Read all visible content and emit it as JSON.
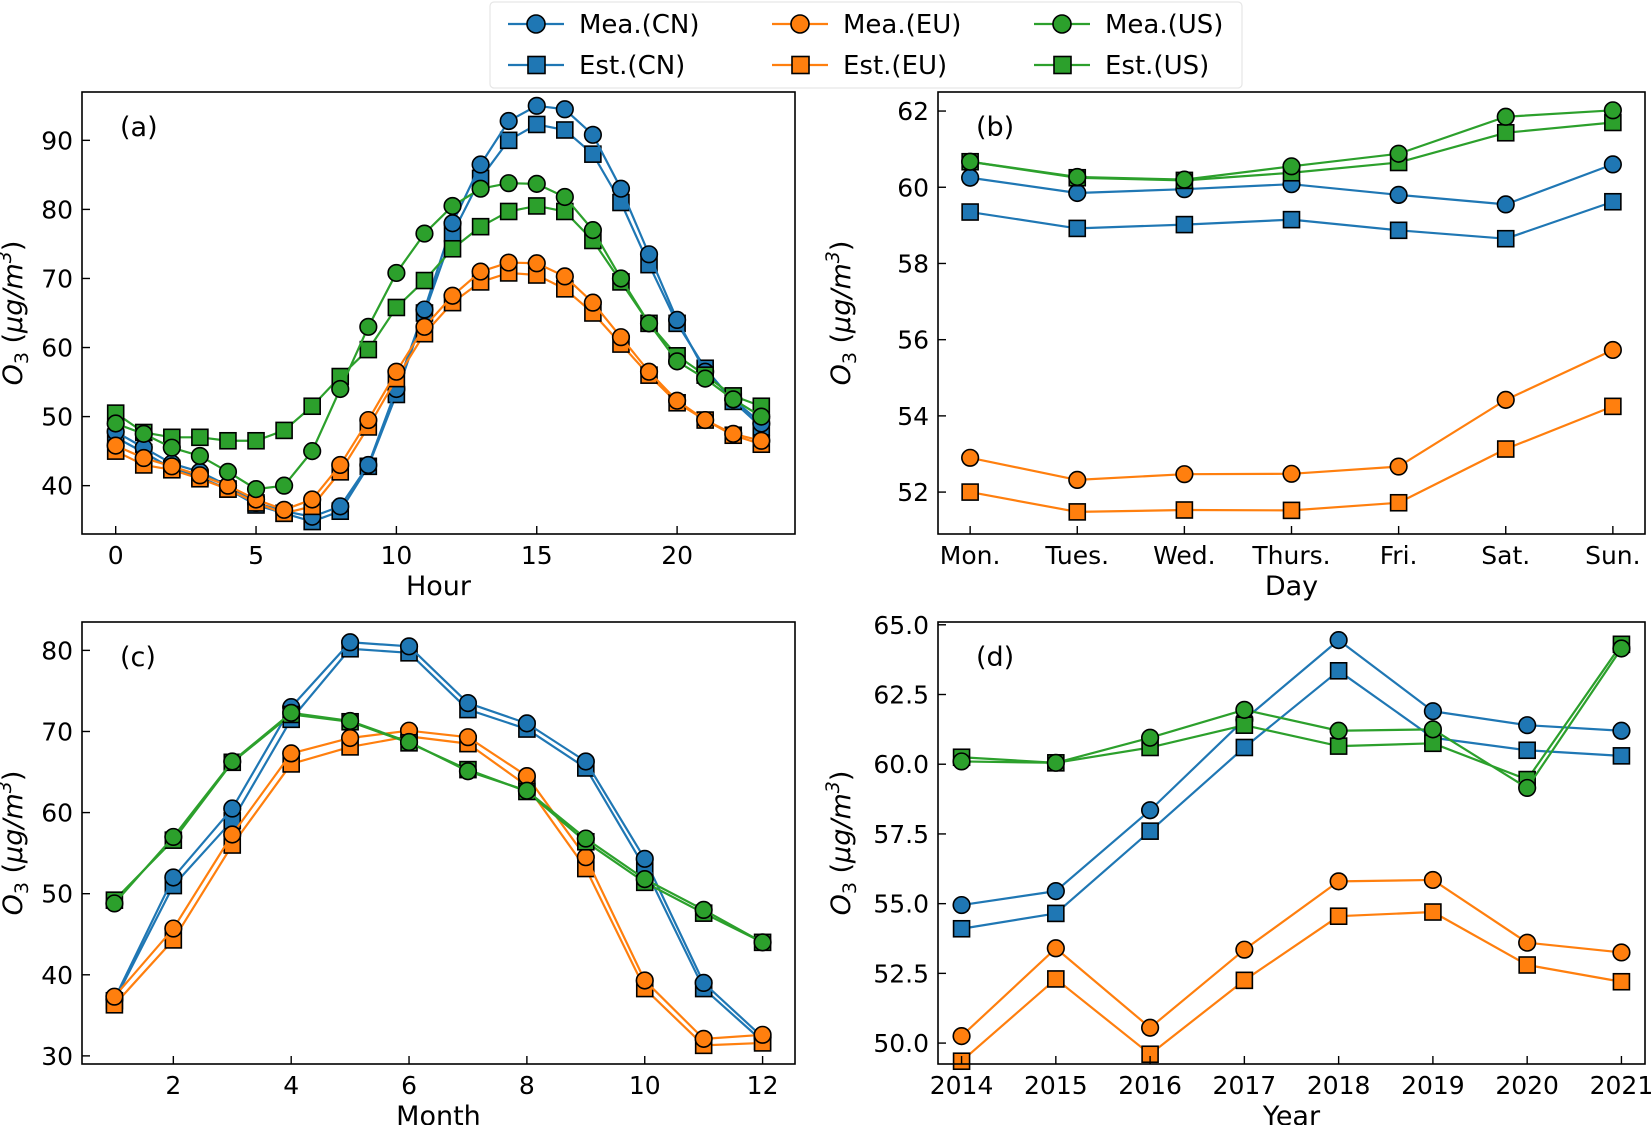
{
  "colors": {
    "CN": "#1f77b4",
    "EU": "#ff7f0e",
    "US": "#2ca02c"
  },
  "legend": {
    "entries": [
      {
        "label": "Mea.(CN)",
        "color": "#1f77b4",
        "marker": "circle"
      },
      {
        "label": "Est.(CN)",
        "color": "#1f77b4",
        "marker": "square"
      },
      {
        "label": "Mea.(EU)",
        "color": "#ff7f0e",
        "marker": "circle"
      },
      {
        "label": "Est.(EU)",
        "color": "#ff7f0e",
        "marker": "square"
      },
      {
        "label": "Mea.(US)",
        "color": "#2ca02c",
        "marker": "circle"
      },
      {
        "label": "Est.(US)",
        "color": "#2ca02c",
        "marker": "square"
      }
    ]
  },
  "chart_data": [
    {
      "panel": "(a)",
      "type": "line",
      "xlabel": "Hour",
      "ylabel": "O3 (μg/m3)",
      "x": [
        0,
        1,
        2,
        3,
        4,
        5,
        6,
        7,
        8,
        9,
        10,
        11,
        12,
        13,
        14,
        15,
        16,
        17,
        18,
        19,
        20,
        21,
        22,
        23
      ],
      "xlim": [
        -1.2,
        24.2
      ],
      "ylim": [
        33,
        97
      ],
      "xticks": [
        0,
        5,
        10,
        15,
        20
      ],
      "xtick_labels": [
        "0",
        "5",
        "10",
        "15",
        "20"
      ],
      "yticks": [
        40,
        50,
        60,
        70,
        80,
        90
      ],
      "ytick_labels": [
        "40",
        "50",
        "60",
        "70",
        "80",
        "90"
      ],
      "series": [
        {
          "name": "Mea.(CN)",
          "values": [
            47.8,
            45.5,
            43.2,
            42,
            40,
            37.5,
            36.3,
            35.5,
            37,
            43,
            54,
            65.5,
            78,
            86.5,
            92.8,
            95,
            94.5,
            90.8,
            83,
            73.5,
            64,
            56.5,
            52.5,
            49
          ]
        },
        {
          "name": "Est.(CN)",
          "values": [
            47,
            44.8,
            42.5,
            41.2,
            39.5,
            37.2,
            36,
            34.8,
            36.3,
            42.8,
            53.2,
            65,
            76.5,
            84.5,
            90,
            92.3,
            91.5,
            88,
            81,
            72,
            63.5,
            57,
            52.2,
            48.5
          ]
        },
        {
          "name": "Mea.(EU)",
          "values": [
            45.8,
            44,
            42.8,
            41.5,
            40,
            38,
            36.5,
            38,
            43,
            49.5,
            56.5,
            63,
            67.5,
            71,
            72.3,
            72.2,
            70.3,
            66.5,
            61.5,
            56.5,
            52.3,
            49.5,
            47.5,
            46.5
          ]
        },
        {
          "name": "Est.(EU)",
          "values": [
            45,
            43,
            42.3,
            41,
            39.5,
            37.5,
            36,
            37,
            42,
            48.5,
            55.5,
            62,
            66.5,
            69.5,
            70.8,
            70.5,
            68.5,
            65,
            60.5,
            56,
            52,
            49.5,
            47.3,
            46
          ]
        },
        {
          "name": "Mea.(US)",
          "values": [
            49,
            47.5,
            45.5,
            44.3,
            42,
            39.5,
            40,
            45,
            54,
            63,
            70.8,
            76.5,
            80.5,
            83,
            83.8,
            83.7,
            81.8,
            77,
            70,
            63.5,
            58,
            55.5,
            52.5,
            50
          ]
        },
        {
          "name": "Est.(US)",
          "values": [
            50.5,
            47.7,
            47,
            47,
            46.5,
            46.5,
            48,
            51.5,
            55.8,
            59.7,
            65.8,
            69.7,
            74.3,
            77.5,
            79.7,
            80.5,
            79.7,
            75.5,
            69.5,
            63.5,
            58.8,
            56,
            53,
            51.5
          ]
        }
      ]
    },
    {
      "panel": "(b)",
      "type": "line",
      "xlabel": "Day",
      "ylabel": "O3 (μg/m3)",
      "x": [
        0,
        1,
        2,
        3,
        4,
        5,
        6
      ],
      "xlim": [
        -0.3,
        6.3
      ],
      "ylim": [
        50.9,
        62.5
      ],
      "xticks": [
        0,
        1,
        2,
        3,
        4,
        5,
        6
      ],
      "xtick_labels": [
        "Mon.",
        "Tues.",
        "Wed.",
        "Thurs.",
        "Fri.",
        "Sat.",
        "Sun."
      ],
      "yticks": [
        52,
        54,
        56,
        58,
        60,
        62
      ],
      "ytick_labels": [
        "52",
        "54",
        "56",
        "58",
        "60",
        "62"
      ],
      "series": [
        {
          "name": "Mea.(CN)",
          "values": [
            60.25,
            59.85,
            59.95,
            60.08,
            59.8,
            59.55,
            60.6
          ]
        },
        {
          "name": "Est.(CN)",
          "values": [
            59.35,
            58.92,
            59.02,
            59.15,
            58.87,
            58.65,
            59.62
          ]
        },
        {
          "name": "Mea.(EU)",
          "values": [
            52.9,
            52.32,
            52.47,
            52.48,
            52.67,
            54.42,
            55.73
          ]
        },
        {
          "name": "Est.(EU)",
          "values": [
            52,
            51.48,
            51.53,
            51.52,
            51.72,
            53.13,
            54.25
          ]
        },
        {
          "name": "Mea.(US)",
          "values": [
            60.67,
            60.27,
            60.2,
            60.55,
            60.88,
            61.85,
            62.02
          ]
        },
        {
          "name": "Est.(US)",
          "values": [
            60.67,
            60.25,
            60.18,
            60.38,
            60.65,
            61.43,
            61.7
          ]
        }
      ]
    },
    {
      "panel": "(c)",
      "type": "line",
      "xlabel": "Month",
      "ylabel": "O3 (μg/m3)",
      "x": [
        1,
        2,
        3,
        4,
        5,
        6,
        7,
        8,
        9,
        10,
        11,
        12
      ],
      "xlim": [
        0.45,
        12.55
      ],
      "ylim": [
        29,
        83.5
      ],
      "xticks": [
        2,
        4,
        6,
        8,
        10,
        12
      ],
      "xtick_labels": [
        "2",
        "4",
        "6",
        "8",
        "10",
        "12"
      ],
      "yticks": [
        30,
        40,
        50,
        60,
        70,
        80
      ],
      "ytick_labels": [
        "30",
        "40",
        "50",
        "60",
        "70",
        "80"
      ],
      "series": [
        {
          "name": "Mea.(CN)",
          "values": [
            37,
            52,
            60.5,
            73,
            81,
            80.5,
            73.5,
            71,
            66.3,
            54.3,
            39,
            32.3
          ]
        },
        {
          "name": "Est.(CN)",
          "values": [
            36.8,
            51,
            59,
            71.5,
            80.2,
            79.7,
            72.7,
            70.3,
            65.5,
            53.2,
            38.3,
            31.8
          ]
        },
        {
          "name": "Mea.(EU)",
          "values": [
            37.3,
            45.7,
            57.3,
            67.3,
            69.2,
            70.1,
            69.3,
            64.5,
            54.5,
            39.3,
            32.1,
            32.6
          ]
        },
        {
          "name": "Est.(EU)",
          "values": [
            36.3,
            44.3,
            56,
            66,
            68.1,
            69.4,
            68.5,
            63.3,
            53.1,
            38.3,
            31.3,
            31.6
          ]
        },
        {
          "name": "Mea.(US)",
          "values": [
            48.8,
            57,
            66.3,
            72.3,
            71.3,
            68.7,
            65.1,
            62.7,
            56.8,
            51.8,
            48,
            44
          ]
        },
        {
          "name": "Est.(US)",
          "values": [
            49.2,
            56.6,
            66.2,
            72.1,
            71.2,
            68.6,
            65.3,
            62.6,
            56.4,
            51.4,
            47.6,
            44
          ]
        }
      ]
    },
    {
      "panel": "(d)",
      "type": "line",
      "xlabel": "Year",
      "ylabel": "O3 (μg/m3)",
      "x": [
        2014,
        2015,
        2016,
        2017,
        2018,
        2019,
        2020,
        2021
      ],
      "xlim": [
        2013.75,
        2021.25
      ],
      "ylim": [
        49.25,
        65.1
      ],
      "xticks": [
        2014,
        2015,
        2016,
        2017,
        2018,
        2019,
        2020,
        2021
      ],
      "xtick_labels": [
        "2014",
        "2015",
        "2016",
        "2017",
        "2018",
        "2019",
        "2020",
        "2021"
      ],
      "yticks": [
        50,
        52.5,
        55,
        57.5,
        60,
        62.5,
        65
      ],
      "ytick_labels": [
        "50.0",
        "52.5",
        "55.0",
        "57.5",
        "60.0",
        "62.5",
        "65.0"
      ],
      "series": [
        {
          "name": "Mea.(CN)",
          "values": [
            54.95,
            55.45,
            58.35,
            61.6,
            64.45,
            61.9,
            61.4,
            61.2
          ]
        },
        {
          "name": "Est.(CN)",
          "values": [
            54.1,
            54.65,
            57.6,
            60.6,
            63.35,
            60.95,
            60.5,
            60.3
          ]
        },
        {
          "name": "Mea.(EU)",
          "values": [
            50.25,
            53.4,
            50.55,
            53.35,
            55.8,
            55.85,
            53.6,
            53.25
          ]
        },
        {
          "name": "Est.(EU)",
          "values": [
            49.35,
            52.3,
            49.6,
            52.25,
            54.55,
            54.7,
            52.8,
            52.2
          ]
        },
        {
          "name": "Mea.(US)",
          "values": [
            60.1,
            60.05,
            60.95,
            61.95,
            61.2,
            61.25,
            59.15,
            64.15
          ]
        },
        {
          "name": "Est.(US)",
          "values": [
            60.25,
            60.05,
            60.6,
            61.4,
            60.65,
            60.75,
            59.45,
            64.3
          ]
        }
      ]
    }
  ]
}
